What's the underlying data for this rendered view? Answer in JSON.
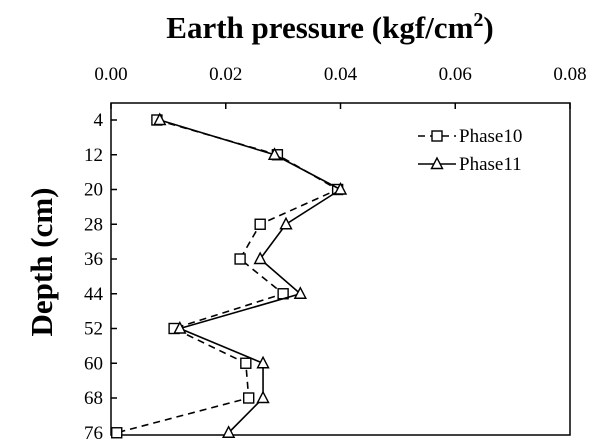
{
  "chart_data": {
    "type": "line",
    "title": "Earth pressure (kgf/cm²)",
    "title_main": "Earth pressure (kgf/cm",
    "title_sup": "2",
    "title_end": ")",
    "xlabel": "Earth pressure (kgf/cm²)",
    "ylabel": "Depth (cm)",
    "xlim": [
      0,
      0.08
    ],
    "ylim": [
      76,
      2
    ],
    "x_axis_position": "top",
    "y_axis_reversed": true,
    "x_ticks": [
      0,
      0.02,
      0.04,
      0.06,
      0.08
    ],
    "x_tick_labels": [
      "0.00",
      "0.02",
      "0.04",
      "0.06",
      "0.08"
    ],
    "y_ticks": [
      4,
      12,
      20,
      28,
      36,
      44,
      52,
      60,
      68,
      76
    ],
    "y_tick_labels": [
      "4",
      "12",
      "20",
      "28",
      "36",
      "44",
      "52",
      "60",
      "68",
      "76"
    ],
    "grid": false,
    "legend_position": "top-right",
    "depth": [
      4,
      12,
      20,
      28,
      36,
      44,
      52,
      60,
      68,
      76
    ],
    "series": [
      {
        "name": "Phase10",
        "marker": "square",
        "line_style": "dashed",
        "values": [
          0.008,
          0.029,
          0.0395,
          0.026,
          0.0225,
          0.03,
          0.011,
          0.0235,
          0.024,
          0.001
        ]
      },
      {
        "name": "Phase11",
        "marker": "triangle",
        "line_style": "solid",
        "values": [
          0.0085,
          0.0285,
          0.04,
          0.0305,
          0.026,
          0.033,
          0.012,
          0.0265,
          0.0265,
          0.0205
        ]
      }
    ]
  }
}
